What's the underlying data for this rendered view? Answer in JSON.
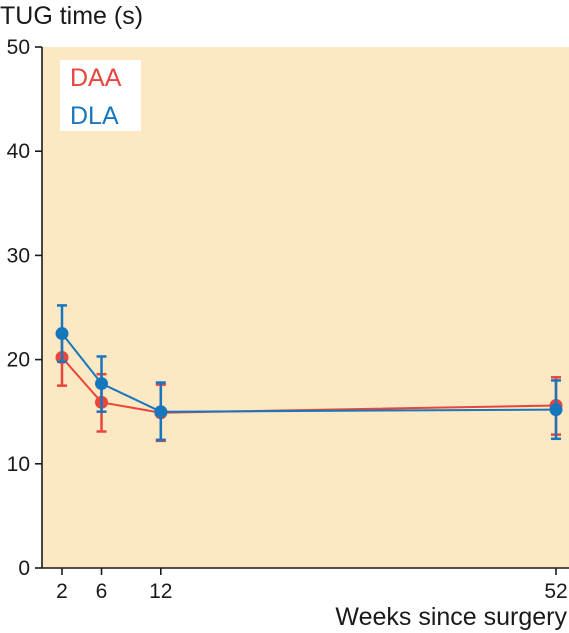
{
  "chart_data": {
    "type": "line",
    "title": "",
    "ylabel": "TUG time (s)",
    "xlabel": "Weeks since surgery",
    "x": [
      2,
      6,
      12,
      52
    ],
    "xticks": [
      2,
      6,
      12,
      52
    ],
    "xlim": [
      0,
      52
    ],
    "ylim": [
      0,
      50
    ],
    "yticks": [
      0,
      10,
      20,
      30,
      40,
      50
    ],
    "grid": false,
    "legend_placement": "top-left",
    "background_color": "#fce8c3",
    "series": [
      {
        "name": "DAA",
        "color": "#e8453c",
        "values": [
          20.2,
          15.9,
          14.9,
          15.6
        ],
        "error_low": [
          17.5,
          13.1,
          12.2,
          12.8
        ],
        "error_high": [
          22.8,
          18.6,
          17.6,
          18.3
        ]
      },
      {
        "name": "DLA",
        "color": "#1777bd",
        "values": [
          22.5,
          17.7,
          15.0,
          15.2
        ],
        "error_low": [
          19.8,
          15.0,
          12.3,
          12.4
        ],
        "error_high": [
          25.2,
          20.3,
          17.8,
          18.0
        ]
      }
    ]
  }
}
